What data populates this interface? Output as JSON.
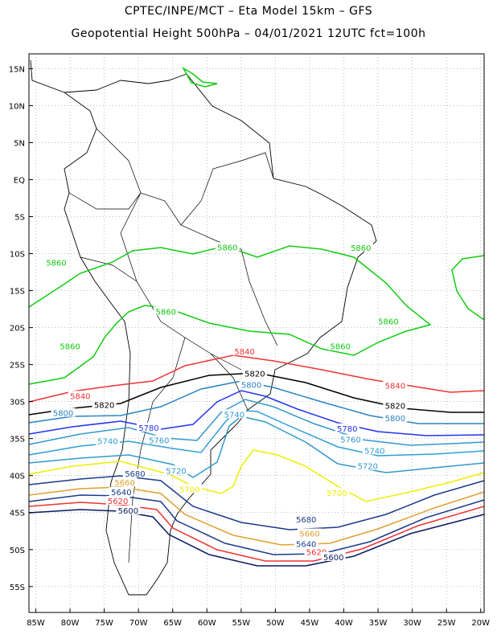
{
  "title_line1": "CPTEC/INPE/MCT –  Eta Model 15km – GFS",
  "title_line2": "Geopotential Height 500hPa – 04/01/2021 12UTC fct=100h",
  "lat_labels": [
    "15N",
    "10N",
    "5N",
    "EQ",
    "5S",
    "10S",
    "15S",
    "20S",
    "25S",
    "30S",
    "35S",
    "40S",
    "45S",
    "50S",
    "55S"
  ],
  "lon_labels": [
    "85W",
    "80W",
    "75W",
    "70W",
    "65W",
    "60W",
    "55W",
    "50W",
    "45W",
    "40W",
    "35W",
    "30W",
    "25W",
    "20W"
  ],
  "contours": [
    {
      "level": 5860,
      "color": "#11cc11",
      "labels": [
        {
          "text": "5860",
          "lon": -57,
          "lat": -9.1
        },
        {
          "text": "5860",
          "lon": -37.5,
          "lat": -9.2
        },
        {
          "text": "5860",
          "lon": -82,
          "lat": -11.2
        },
        {
          "text": "5860",
          "lon": -66,
          "lat": -17.8
        },
        {
          "text": "5860",
          "lon": -33.5,
          "lat": -19.1
        },
        {
          "text": "5860",
          "lon": -80,
          "lat": -22.5
        },
        {
          "text": "5860",
          "lon": -40.5,
          "lat": -22.5
        }
      ]
    },
    {
      "level": 5840,
      "color": "#ee3333",
      "labels": [
        {
          "text": "5840",
          "lon": -54.5,
          "lat": -23.2
        },
        {
          "text": "5840",
          "lon": -32.5,
          "lat": -27.8
        },
        {
          "text": "5840",
          "lon": -78.5,
          "lat": -29.2
        }
      ]
    },
    {
      "level": 5820,
      "color": "#000000",
      "labels": [
        {
          "text": "5820",
          "lon": -53,
          "lat": -26.2
        },
        {
          "text": "5820",
          "lon": -75,
          "lat": -30.4
        },
        {
          "text": "5820",
          "lon": -32.5,
          "lat": -30.5
        }
      ]
    },
    {
      "level": 5800,
      "color": "#2a84c0",
      "labels": [
        {
          "text": "5800",
          "lon": -53.5,
          "lat": -27.7
        },
        {
          "text": "5800",
          "lon": -81,
          "lat": -31.5
        },
        {
          "text": "5800",
          "lon": -32.5,
          "lat": -32.2
        }
      ]
    },
    {
      "level": 5780,
      "color": "#2233ee",
      "labels": [
        {
          "text": "5780",
          "lon": -68.5,
          "lat": -33.5
        },
        {
          "text": "5780",
          "lon": -39.5,
          "lat": -33.6
        }
      ]
    },
    {
      "level": 5760,
      "color": "#3399cc",
      "labels": [
        {
          "text": "5760",
          "lon": -39,
          "lat": -35.1
        },
        {
          "text": "5760",
          "lon": -67,
          "lat": -35.2
        }
      ]
    },
    {
      "level": 5740,
      "color": "#2e9fd6",
      "labels": [
        {
          "text": "5740",
          "lon": -56,
          "lat": -31.7
        },
        {
          "text": "5740",
          "lon": -74.5,
          "lat": -35.3
        },
        {
          "text": "5740",
          "lon": -35.5,
          "lat": -36.6
        }
      ]
    },
    {
      "level": 5720,
      "color": "#3399cc",
      "labels": [
        {
          "text": "5720",
          "lon": -64.5,
          "lat": -39.3
        },
        {
          "text": "5720",
          "lon": -36.5,
          "lat": -38.7
        }
      ]
    },
    {
      "level": 5700,
      "color": "#eeee00",
      "labels": [
        {
          "text": "5700",
          "lon": -62.5,
          "lat": -41.8
        },
        {
          "text": "5700",
          "lon": -41,
          "lat": -42.3
        }
      ]
    },
    {
      "level": 5680,
      "color": "#1a3b8a",
      "labels": [
        {
          "text": "5680",
          "lon": -70.5,
          "lat": -39.7
        },
        {
          "text": "5680",
          "lon": -45.5,
          "lat": -45.9
        }
      ]
    },
    {
      "level": 5660,
      "color": "#e0a030",
      "labels": [
        {
          "text": "5660",
          "lon": -72,
          "lat": -40.9
        },
        {
          "text": "5660",
          "lon": -45,
          "lat": -47.8
        }
      ]
    },
    {
      "level": 5640,
      "color": "#1a3b8a",
      "labels": [
        {
          "text": "5640",
          "lon": -72.5,
          "lat": -42.2
        },
        {
          "text": "5640",
          "lon": -45.5,
          "lat": -49.2
        }
      ]
    },
    {
      "level": 5620,
      "color": "#ee3333",
      "labels": [
        {
          "text": "5620",
          "lon": -73,
          "lat": -43.4
        },
        {
          "text": "5620",
          "lon": -44,
          "lat": -50.3
        }
      ]
    },
    {
      "level": 5600,
      "color": "#0a1a60",
      "labels": [
        {
          "text": "5600",
          "lon": -71.5,
          "lat": -44.7
        },
        {
          "text": "5600",
          "lon": -41.5,
          "lat": -51
        }
      ]
    }
  ]
}
